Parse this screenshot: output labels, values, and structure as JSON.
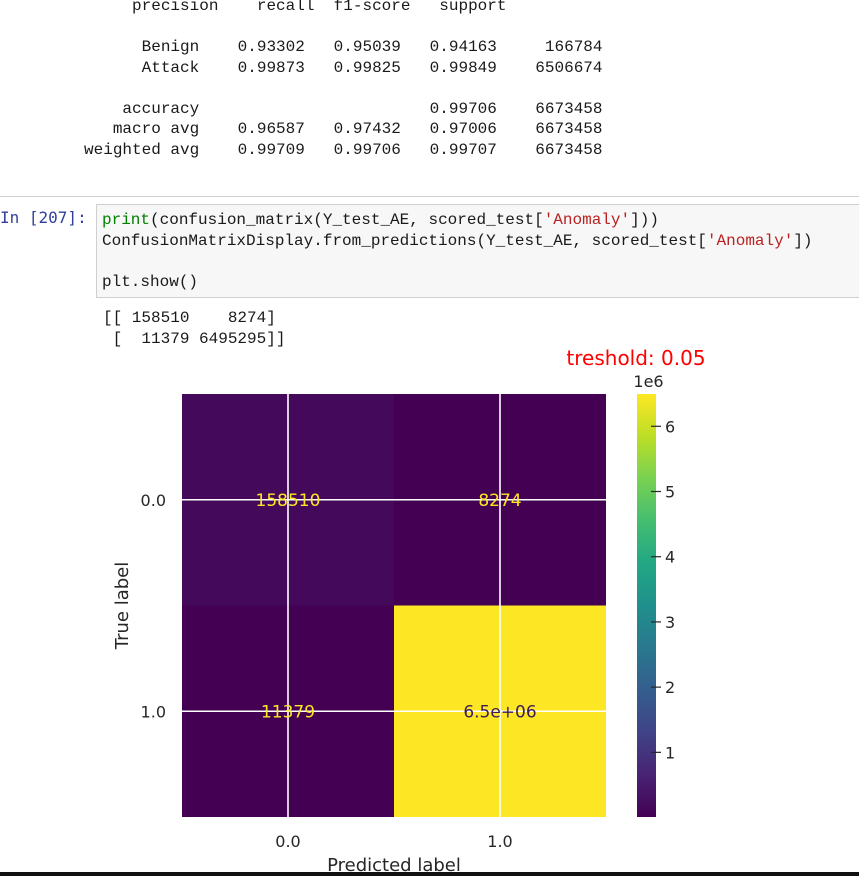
{
  "report": {
    "header": [
      "precision",
      "recall",
      "f1-score",
      "support"
    ],
    "rows": [
      {
        "label": "Benign",
        "precision": "0.93302",
        "recall": "0.95039",
        "f1": "0.94163",
        "support": "166784"
      },
      {
        "label": "Attack",
        "precision": "0.99873",
        "recall": "0.99825",
        "f1": "0.99849",
        "support": "6506674"
      }
    ],
    "summary": [
      {
        "label": "accuracy",
        "precision": "",
        "recall": "",
        "f1": "0.99706",
        "support": "6673458"
      },
      {
        "label": "macro avg",
        "precision": "0.96587",
        "recall": "0.97432",
        "f1": "0.97006",
        "support": "6673458"
      },
      {
        "label": "weighted avg",
        "precision": "0.99709",
        "recall": "0.99706",
        "f1": "0.99707",
        "support": "6673458"
      }
    ]
  },
  "cell": {
    "prompt": "In [207]:",
    "code": [
      [
        {
          "t": "print",
          "c": "kw-builtin"
        },
        {
          "t": "(confusion_matrix(Y_test_AE, scored_test[",
          "c": ""
        },
        {
          "t": "'Anomaly'",
          "c": "str"
        },
        {
          "t": "]))",
          "c": ""
        }
      ],
      [
        {
          "t": "ConfusionMatrixDisplay.from_predictions(Y_test_AE, scored_test[",
          "c": ""
        },
        {
          "t": "'Anomaly'",
          "c": "str"
        },
        {
          "t": "])",
          "c": ""
        }
      ],
      [],
      [
        {
          "t": "plt.show()",
          "c": ""
        }
      ]
    ]
  },
  "output": {
    "lines": [
      "[[ 158510    8274]",
      " [  11379 6495295]]"
    ]
  },
  "chart_data": {
    "type": "heatmap",
    "title": "treshold: 0.05",
    "title_color": "#ff0000",
    "xlabel": "Predicted label",
    "ylabel": "True label",
    "x_ticks": [
      "0.0",
      "1.0"
    ],
    "y_ticks": [
      "0.0",
      "1.0"
    ],
    "matrix": [
      [
        158510,
        8274
      ],
      [
        11379,
        6495295
      ]
    ],
    "cell_labels": [
      [
        "158510",
        "8274"
      ],
      [
        "11379",
        "6.5e+06"
      ]
    ],
    "colorbar": {
      "colormap": "viridis",
      "min": 8274,
      "max": 6495295,
      "ticks": [
        1,
        2,
        3,
        4,
        5,
        6
      ],
      "offset_label": "1e6"
    },
    "grid": true
  }
}
